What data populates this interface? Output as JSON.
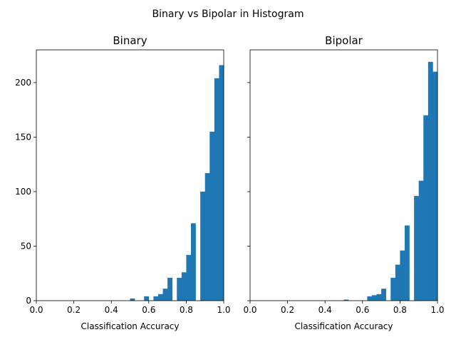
{
  "figure": {
    "title": "Binary vs Bipolar in Histogram",
    "bar_color": "#1f77b4"
  },
  "chart_data": [
    {
      "type": "bar",
      "title": "Binary",
      "xlabel": "Classification Accuracy",
      "ylabel": "",
      "xlim": [
        0,
        1
      ],
      "ylim": [
        0,
        230
      ],
      "bin_width": 0.025,
      "xticks": [
        "0.0",
        "0.2",
        "0.4",
        "0.6",
        "0.8",
        "1.0"
      ],
      "yticks": [
        "0",
        "50",
        "100",
        "150",
        "200"
      ],
      "bins": [
        {
          "x": 0.5,
          "value": 2
        },
        {
          "x": 0.575,
          "value": 4
        },
        {
          "x": 0.625,
          "value": 4
        },
        {
          "x": 0.65,
          "value": 6
        },
        {
          "x": 0.675,
          "value": 11
        },
        {
          "x": 0.7,
          "value": 21
        },
        {
          "x": 0.75,
          "value": 21
        },
        {
          "x": 0.775,
          "value": 26
        },
        {
          "x": 0.8,
          "value": 42
        },
        {
          "x": 0.825,
          "value": 71
        },
        {
          "x": 0.875,
          "value": 100
        },
        {
          "x": 0.9,
          "value": 117
        },
        {
          "x": 0.925,
          "value": 155
        },
        {
          "x": 0.95,
          "value": 204
        },
        {
          "x": 0.975,
          "value": 216
        }
      ]
    },
    {
      "type": "bar",
      "title": "Bipolar",
      "xlabel": "Classification Accuracy",
      "ylabel": "",
      "xlim": [
        0,
        1
      ],
      "ylim": [
        0,
        230
      ],
      "bin_width": 0.025,
      "xticks": [
        "0.0",
        "0.2",
        "0.4",
        "0.6",
        "0.8",
        "1.0"
      ],
      "yticks": [],
      "bins": [
        {
          "x": 0.5,
          "value": 1
        },
        {
          "x": 0.625,
          "value": 4
        },
        {
          "x": 0.65,
          "value": 5
        },
        {
          "x": 0.675,
          "value": 6
        },
        {
          "x": 0.7,
          "value": 11
        },
        {
          "x": 0.75,
          "value": 21
        },
        {
          "x": 0.775,
          "value": 33
        },
        {
          "x": 0.8,
          "value": 46
        },
        {
          "x": 0.825,
          "value": 69
        },
        {
          "x": 0.875,
          "value": 96
        },
        {
          "x": 0.9,
          "value": 110
        },
        {
          "x": 0.925,
          "value": 170
        },
        {
          "x": 0.95,
          "value": 219
        },
        {
          "x": 0.975,
          "value": 210
        }
      ]
    }
  ]
}
